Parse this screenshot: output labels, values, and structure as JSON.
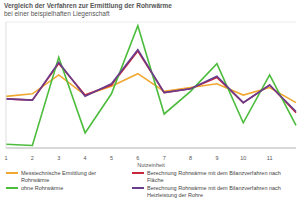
{
  "chart_data": {
    "type": "line",
    "title": "Vergleich der Verfahren zur Ermittlung der Rohrwärme",
    "subtitle": "bei einer beispielhaften Liegenschaft",
    "x_label": "Nutzeinheit",
    "categories": [
      "1",
      "2",
      "3",
      "4",
      "5",
      "6",
      "7",
      "8",
      "9",
      "10",
      "11",
      null
    ],
    "series": [
      {
        "name": "Messtechnische Ermittlung der Rohrwärme",
        "color": "#f0a830",
        "values": [
          41,
          43,
          58,
          42,
          49,
          59,
          45,
          48,
          51,
          42,
          48,
          36
        ]
      },
      {
        "name": "Berechnung Rohrwärme mit dem Bilanzverfahren nach Fläche",
        "color": "#c8283c",
        "values": [
          39,
          38,
          67,
          42,
          50,
          77,
          44,
          47,
          56,
          36,
          50,
          28
        ]
      },
      {
        "name": "ohne Rohrwärme",
        "color": "#4cbc3c",
        "values": [
          3,
          2,
          72,
          12,
          43,
          97,
          27,
          45,
          67,
          20,
          58,
          18
        ]
      },
      {
        "name": "Berechnung Rohrwärme mit dem Bilanzverfahren nach Heizleistung der Rohre",
        "color": "#6a3c8c",
        "values": [
          39,
          38,
          68,
          41,
          51,
          78,
          44,
          47,
          57,
          36,
          50,
          29
        ]
      }
    ],
    "ylim": [
      0,
      100
    ],
    "yticks": [
      0,
      20,
      40,
      60,
      80,
      100
    ],
    "grid": true,
    "legend": "bottom",
    "tick_labels": "x"
  }
}
